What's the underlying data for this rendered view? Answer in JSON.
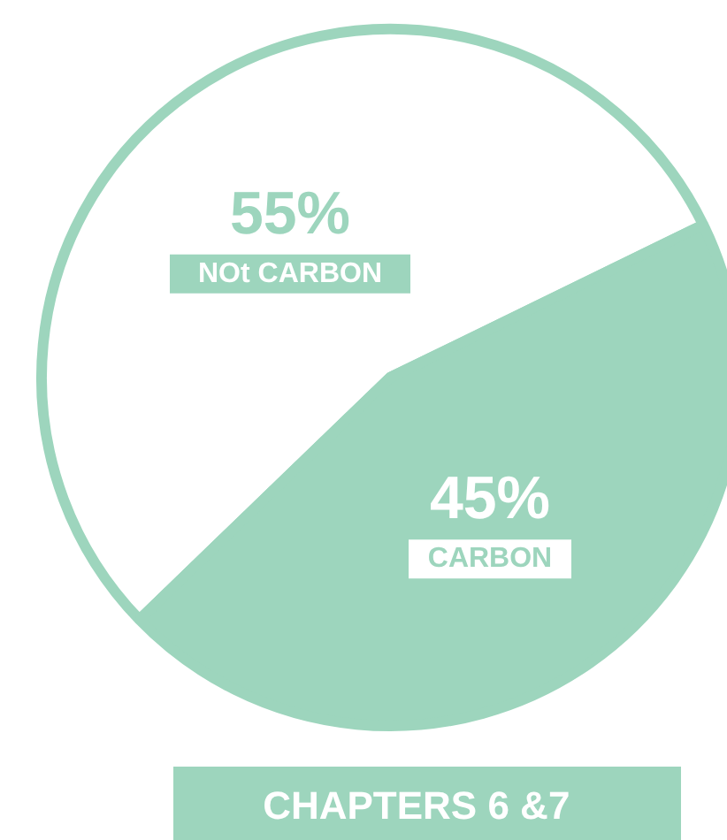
{
  "chart_data": {
    "type": "pie",
    "title": "CHAPTERS   6 &7",
    "categories": [
      "NOt CARBON",
      "CARBON"
    ],
    "values": [
      55,
      45
    ],
    "colors": [
      "#ffffff",
      "#9dd5bd"
    ],
    "value_labels": [
      "55%",
      "45%"
    ]
  }
}
